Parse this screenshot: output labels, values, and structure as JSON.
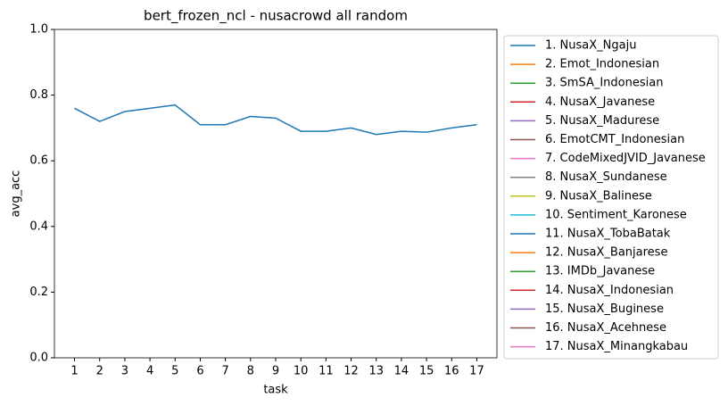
{
  "chart_data": {
    "type": "line",
    "title": "bert_frozen_ncl - nusacrowd all random",
    "xlabel": "task",
    "ylabel": "avg_acc",
    "x": [
      1,
      2,
      3,
      4,
      5,
      6,
      7,
      8,
      9,
      10,
      11,
      12,
      13,
      14,
      15,
      16,
      17
    ],
    "xlim": [
      0.2,
      17.8
    ],
    "xticks": [
      1,
      2,
      3,
      4,
      5,
      6,
      7,
      8,
      9,
      10,
      11,
      12,
      13,
      14,
      15,
      16,
      17
    ],
    "ylim": [
      0,
      1
    ],
    "yticks": [
      {
        "value": 0,
        "label": "0.0"
      },
      {
        "value": 0.2,
        "label": "0.2"
      },
      {
        "value": 0.4,
        "label": "0.4"
      },
      {
        "value": 0.6,
        "label": "0.6"
      },
      {
        "value": 0.8,
        "label": "0.8"
      },
      {
        "value": 1,
        "label": "1.0"
      }
    ],
    "legend": "outside-right",
    "series": [
      {
        "name": "1. NusaX_Ngaju",
        "color": "#1f77b4",
        "values": [
          0.76,
          0.72,
          0.75,
          0.76,
          0.77,
          0.71,
          0.71,
          0.735,
          0.73,
          0.69,
          0.69,
          0.7,
          0.68,
          0.69,
          0.687,
          0.7,
          0.71
        ]
      },
      {
        "name": "2. Emot_Indonesian",
        "color": "#ff7f0e"
      },
      {
        "name": "3. SmSA_Indonesian",
        "color": "#2ca02c"
      },
      {
        "name": "4. NusaX_Javanese",
        "color": "#d62728"
      },
      {
        "name": "5. NusaX_Madurese",
        "color": "#9467bd"
      },
      {
        "name": "6. EmotCMT_Indonesian",
        "color": "#8c564b"
      },
      {
        "name": "7. CodeMixedJVID_Javanese",
        "color": "#e377c2"
      },
      {
        "name": "8. NusaX_Sundanese",
        "color": "#7f7f7f"
      },
      {
        "name": "9. NusaX_Balinese",
        "color": "#bcbd22"
      },
      {
        "name": "10. Sentiment_Karonese",
        "color": "#17becf"
      },
      {
        "name": "11. NusaX_TobaBatak",
        "color": "#1f77b4"
      },
      {
        "name": "12. NusaX_Banjarese",
        "color": "#ff7f0e"
      },
      {
        "name": "13. IMDb_Javanese",
        "color": "#2ca02c"
      },
      {
        "name": "14. NusaX_Indonesian",
        "color": "#d62728"
      },
      {
        "name": "15. NusaX_Buginese",
        "color": "#9467bd"
      },
      {
        "name": "16. NusaX_Acehnese",
        "color": "#8c564b"
      },
      {
        "name": "17. NusaX_Minangkabau",
        "color": "#e377c2"
      }
    ]
  }
}
